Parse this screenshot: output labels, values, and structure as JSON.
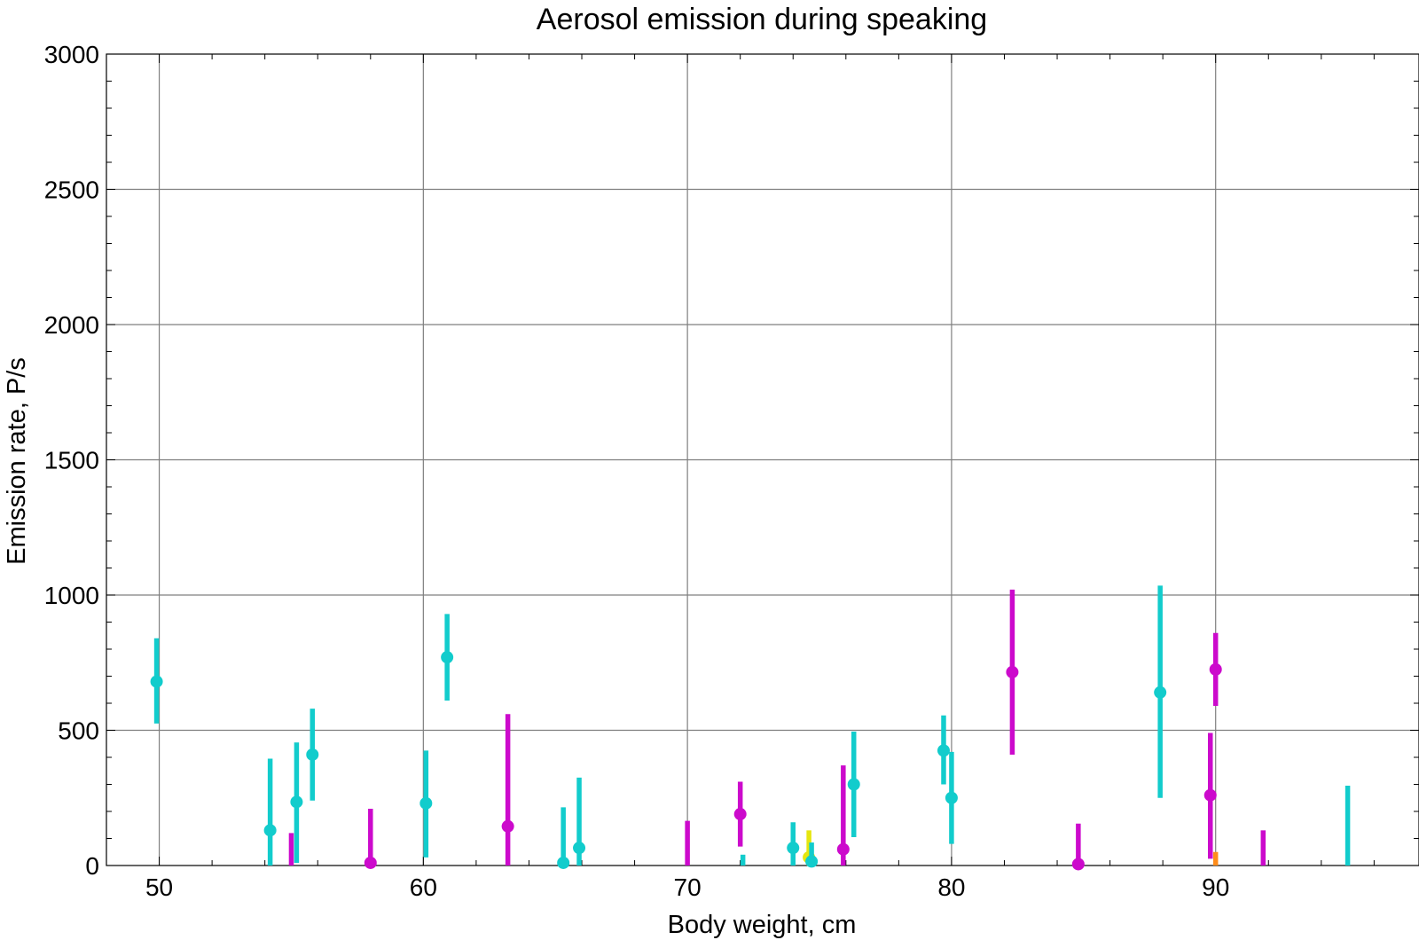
{
  "chart_data": {
    "type": "scatter",
    "title": "Aerosol emission during speaking",
    "xlabel": "Body weight,  cm",
    "ylabel": "Emission rate,  P/s",
    "xlim": [
      48,
      97.7
    ],
    "ylim": [
      0,
      3000
    ],
    "x_ticks": [
      "50",
      "60",
      "70",
      "80",
      "90"
    ],
    "y_ticks": [
      "0",
      "500",
      "1000",
      "1500",
      "2000",
      "2500",
      "3000"
    ],
    "grid": true,
    "colors": {
      "cyan": "#12CCCC",
      "magenta": "#CC0ACC",
      "yellow": "#E6E60F",
      "orange": "#FF8C1A"
    },
    "points": [
      {
        "x": 49.9,
        "y": 680,
        "low": 525,
        "high": 840,
        "color": "cyan",
        "marker": true
      },
      {
        "x": 54.2,
        "y": 130,
        "low": 0,
        "high": 395,
        "color": "cyan",
        "marker": true
      },
      {
        "x": 55.0,
        "y": 50,
        "low": 0,
        "high": 120,
        "color": "magenta",
        "marker": false
      },
      {
        "x": 55.2,
        "y": 235,
        "low": 10,
        "high": 455,
        "color": "cyan",
        "marker": true
      },
      {
        "x": 55.8,
        "y": 410,
        "low": 240,
        "high": 580,
        "color": "cyan",
        "marker": true
      },
      {
        "x": 58.0,
        "y": 10,
        "low": 0,
        "high": 210,
        "color": "magenta",
        "marker": true
      },
      {
        "x": 60.1,
        "y": 230,
        "low": 30,
        "high": 425,
        "color": "cyan",
        "marker": true
      },
      {
        "x": 60.9,
        "y": 770,
        "low": 610,
        "high": 930,
        "color": "cyan",
        "marker": true
      },
      {
        "x": 63.2,
        "y": 145,
        "low": 0,
        "high": 560,
        "color": "magenta",
        "marker": true
      },
      {
        "x": 65.3,
        "y": 10,
        "low": 0,
        "high": 215,
        "color": "cyan",
        "marker": true
      },
      {
        "x": 65.9,
        "y": 65,
        "low": 0,
        "high": 325,
        "color": "cyan",
        "marker": true
      },
      {
        "x": 70.0,
        "y": 40,
        "low": 0,
        "high": 165,
        "color": "magenta",
        "marker": false
      },
      {
        "x": 72.0,
        "y": 190,
        "low": 70,
        "high": 310,
        "color": "magenta",
        "marker": true
      },
      {
        "x": 72.1,
        "y": 15,
        "low": 0,
        "high": 40,
        "color": "cyan",
        "marker": false
      },
      {
        "x": 74.0,
        "y": 65,
        "low": 0,
        "high": 160,
        "color": "cyan",
        "marker": true
      },
      {
        "x": 74.6,
        "y": 30,
        "low": 0,
        "high": 130,
        "color": "yellow",
        "marker": true
      },
      {
        "x": 74.7,
        "y": 15,
        "low": 0,
        "high": 85,
        "color": "cyan",
        "marker": true
      },
      {
        "x": 75.9,
        "y": 60,
        "low": 0,
        "high": 370,
        "color": "magenta",
        "marker": true
      },
      {
        "x": 76.3,
        "y": 300,
        "low": 105,
        "high": 495,
        "color": "cyan",
        "marker": true
      },
      {
        "x": 79.7,
        "y": 425,
        "low": 300,
        "high": 555,
        "color": "cyan",
        "marker": true
      },
      {
        "x": 80.0,
        "y": 250,
        "low": 80,
        "high": 420,
        "color": "cyan",
        "marker": true
      },
      {
        "x": 82.3,
        "y": 715,
        "low": 410,
        "high": 1020,
        "color": "magenta",
        "marker": true
      },
      {
        "x": 84.8,
        "y": 5,
        "low": 0,
        "high": 155,
        "color": "magenta",
        "marker": true
      },
      {
        "x": 87.9,
        "y": 640,
        "low": 250,
        "high": 1035,
        "color": "cyan",
        "marker": true
      },
      {
        "x": 89.8,
        "y": 260,
        "low": 25,
        "high": 490,
        "color": "magenta",
        "marker": true
      },
      {
        "x": 90.0,
        "y": 15,
        "low": 0,
        "high": 50,
        "color": "orange",
        "marker": false
      },
      {
        "x": 90.0,
        "y": 725,
        "low": 590,
        "high": 860,
        "color": "magenta",
        "marker": true
      },
      {
        "x": 91.8,
        "y": 50,
        "low": 0,
        "high": 130,
        "color": "magenta",
        "marker": false
      },
      {
        "x": 95.0,
        "y": 100,
        "low": 0,
        "high": 295,
        "color": "cyan",
        "marker": false
      }
    ]
  }
}
